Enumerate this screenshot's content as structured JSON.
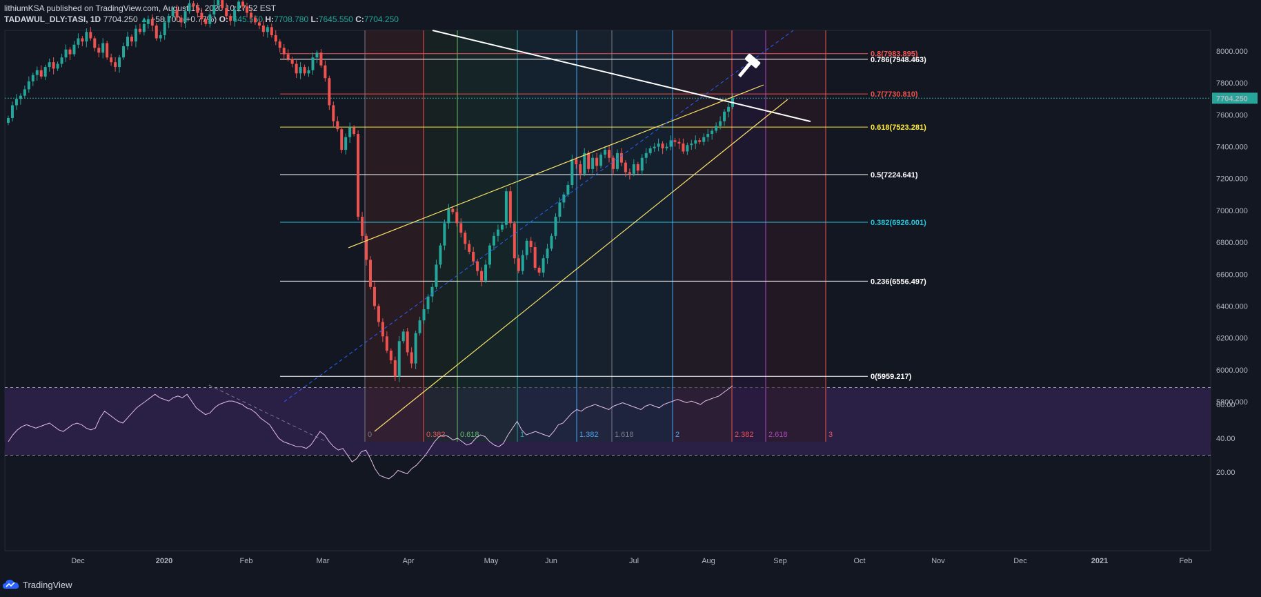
{
  "header": {
    "line1": "lithiumKSA published on TradingView.com, August 15, 2020 10:27:52 EST",
    "symbol": "TADAWUL_DLY:TASI, 1D",
    "last": "7704.250",
    "change": "+58.700 (+0.77%)",
    "o_label": "O:",
    "o_value": "7645.550",
    "h_label": "H:",
    "h_value": "7708.780",
    "l_label": "L:",
    "l_value": "7645.550",
    "c_label": "C:",
    "c_value": "7704.250"
  },
  "footer": {
    "brand": "TradingView"
  },
  "colors": {
    "up": "#26a69a",
    "down": "#ef5350",
    "background": "#131722",
    "rsi": "#e1bee7",
    "rsi_band": "#2a1f45"
  },
  "chart_data": [
    {
      "type": "candlestick",
      "symbol": "TADAWUL_DLY:TASI",
      "interval": "1D",
      "price_axis": {
        "ticks": [
          5800,
          6000,
          6200,
          6400,
          6600,
          6800,
          7000,
          7200,
          7400,
          7600,
          7800,
          8000
        ],
        "tick_labels": [
          "5800.000",
          "6000.000",
          "6200.000",
          "6400.000",
          "6600.000",
          "6800.000",
          "7000.000",
          "7200.000",
          "7400.000",
          "7600.000",
          "7800.000",
          "8000.000"
        ],
        "last_price_label": "7704.250",
        "last_price": 7704.25
      },
      "time_axis": {
        "labels": [
          "Dec",
          "2020",
          "Feb",
          "Mar",
          "Apr",
          "May",
          "Jun",
          "Jul",
          "Aug",
          "Sep",
          "Oct",
          "Nov",
          "Dec",
          "2021",
          "Feb"
        ]
      },
      "closes": [
        7580,
        7660,
        7700,
        7720,
        7760,
        7810,
        7850,
        7880,
        7840,
        7900,
        7930,
        7890,
        7920,
        7960,
        8010,
        7980,
        8040,
        8080,
        8060,
        8120,
        8080,
        8020,
        7990,
        8050,
        7960,
        7930,
        7900,
        7960,
        8030,
        8090,
        8060,
        8140,
        8120,
        8170,
        8200,
        8160,
        8080,
        8100,
        8180,
        8220,
        8260,
        8210,
        8180,
        8250,
        8300,
        8280,
        8240,
        8200,
        8170,
        8230,
        8290,
        8320,
        8270,
        8220,
        8190,
        8260,
        8310,
        8280,
        8240,
        8210,
        8180,
        8160,
        8120,
        8150,
        8100,
        8060,
        8020,
        7980,
        7950,
        7920,
        7860,
        7900,
        7860,
        7880,
        7960,
        7990,
        7910,
        7830,
        7660,
        7560,
        7510,
        7380,
        7460,
        7520,
        7480,
        6960,
        6840,
        6690,
        6520,
        6400,
        6300,
        6210,
        6120,
        6060,
        5959,
        6180,
        6240,
        6110,
        6040,
        6230,
        6310,
        6380,
        6460,
        6520,
        6660,
        6780,
        6920,
        7010,
        6990,
        6920,
        6860,
        6790,
        6740,
        6680,
        6620,
        6560,
        6660,
        6780,
        6840,
        6880,
        6910,
        7120,
        6920,
        6700,
        6620,
        6720,
        6810,
        6770,
        6640,
        6610,
        6700,
        6760,
        6840,
        6960,
        7050,
        7100,
        7160,
        7320,
        7290,
        7230,
        7360,
        7260,
        7330,
        7280,
        7350,
        7380,
        7330,
        7260,
        7360,
        7300,
        7240,
        7230,
        7290,
        7250,
        7330,
        7360,
        7390,
        7400,
        7420,
        7390,
        7400,
        7440,
        7430,
        7420,
        7370,
        7410,
        7420,
        7440,
        7430,
        7460,
        7480,
        7500,
        7530,
        7560,
        7620,
        7650,
        7704.25
      ],
      "fib_retracement": [
        {
          "level": "0.8(7983.895)",
          "price": 7983.895,
          "color": "#ef5350"
        },
        {
          "level": "0.786(7948.463)",
          "price": 7948.463,
          "color": "#ffffff"
        },
        {
          "level": "0.7(7730.810)",
          "price": 7730.81,
          "color": "#ef5350"
        },
        {
          "level": "0.618(7523.281)",
          "price": 7523.281,
          "color": "#ffeb3b"
        },
        {
          "level": "0.5(7224.641)",
          "price": 7224.641,
          "color": "#ffffff"
        },
        {
          "level": "0.382(6926.001)",
          "price": 6926.001,
          "color": "#26c6da"
        },
        {
          "level": "0.236(6556.497)",
          "price": 6556.497,
          "color": "#ffffff"
        },
        {
          "level": "0(5959.217)",
          "price": 5959.217,
          "color": "#ffffff"
        }
      ],
      "fib_time_zones": [
        {
          "label": "0",
          "color": "#787b86"
        },
        {
          "label": "0.382",
          "color": "#ef5350"
        },
        {
          "label": "0.618",
          "color": "#66bb6a"
        },
        {
          "label": "1",
          "color": "#26a69a"
        },
        {
          "label": "1.382",
          "color": "#42a5f5"
        },
        {
          "label": "1.618",
          "color": "#787b86"
        },
        {
          "label": "2",
          "color": "#42a5f5"
        },
        {
          "label": "2.382",
          "color": "#ef5350"
        },
        {
          "label": "2.618",
          "color": "#ab47bc"
        },
        {
          "label": "3",
          "color": "#ef5350"
        }
      ]
    },
    {
      "type": "line",
      "name": "RSI",
      "y_ticks": [
        20,
        40,
        60
      ],
      "y_tick_labels": [
        "20.00",
        "40.00",
        "60.00"
      ],
      "bands": [
        30,
        70
      ],
      "ylim": [
        13,
        73
      ],
      "values": [
        38,
        42,
        45,
        47,
        48,
        47,
        46,
        47,
        48,
        49,
        47,
        45,
        44,
        46,
        48,
        49,
        48,
        46,
        45,
        46,
        52,
        56,
        54,
        52,
        50,
        49,
        52,
        55,
        58,
        60,
        62,
        64,
        66,
        64,
        63,
        62,
        64,
        65,
        64,
        66,
        62,
        58,
        56,
        54,
        55,
        58,
        60,
        61,
        62,
        62,
        61,
        60,
        58,
        57,
        55,
        52,
        50,
        48,
        44,
        40,
        38,
        37,
        36,
        35,
        35,
        34,
        36,
        40,
        44,
        42,
        38,
        35,
        33,
        34,
        30,
        26,
        28,
        32,
        33,
        28,
        22,
        18,
        17,
        16,
        18,
        21,
        20,
        19,
        22,
        24,
        27,
        30,
        34,
        38,
        41,
        42,
        41,
        39,
        40,
        38,
        36,
        37,
        40,
        42,
        41,
        38,
        36,
        35,
        37,
        42,
        46,
        50,
        45,
        42,
        43,
        44,
        43,
        42,
        41,
        44,
        48,
        49,
        52,
        55,
        57,
        56,
        58,
        59,
        60,
        59,
        58,
        57,
        59,
        60,
        61,
        60,
        59,
        58,
        57,
        59,
        60,
        59,
        58,
        60,
        61,
        62,
        63,
        62,
        61,
        62,
        61,
        60,
        62,
        63,
        64,
        65,
        67,
        69,
        71
      ]
    }
  ]
}
